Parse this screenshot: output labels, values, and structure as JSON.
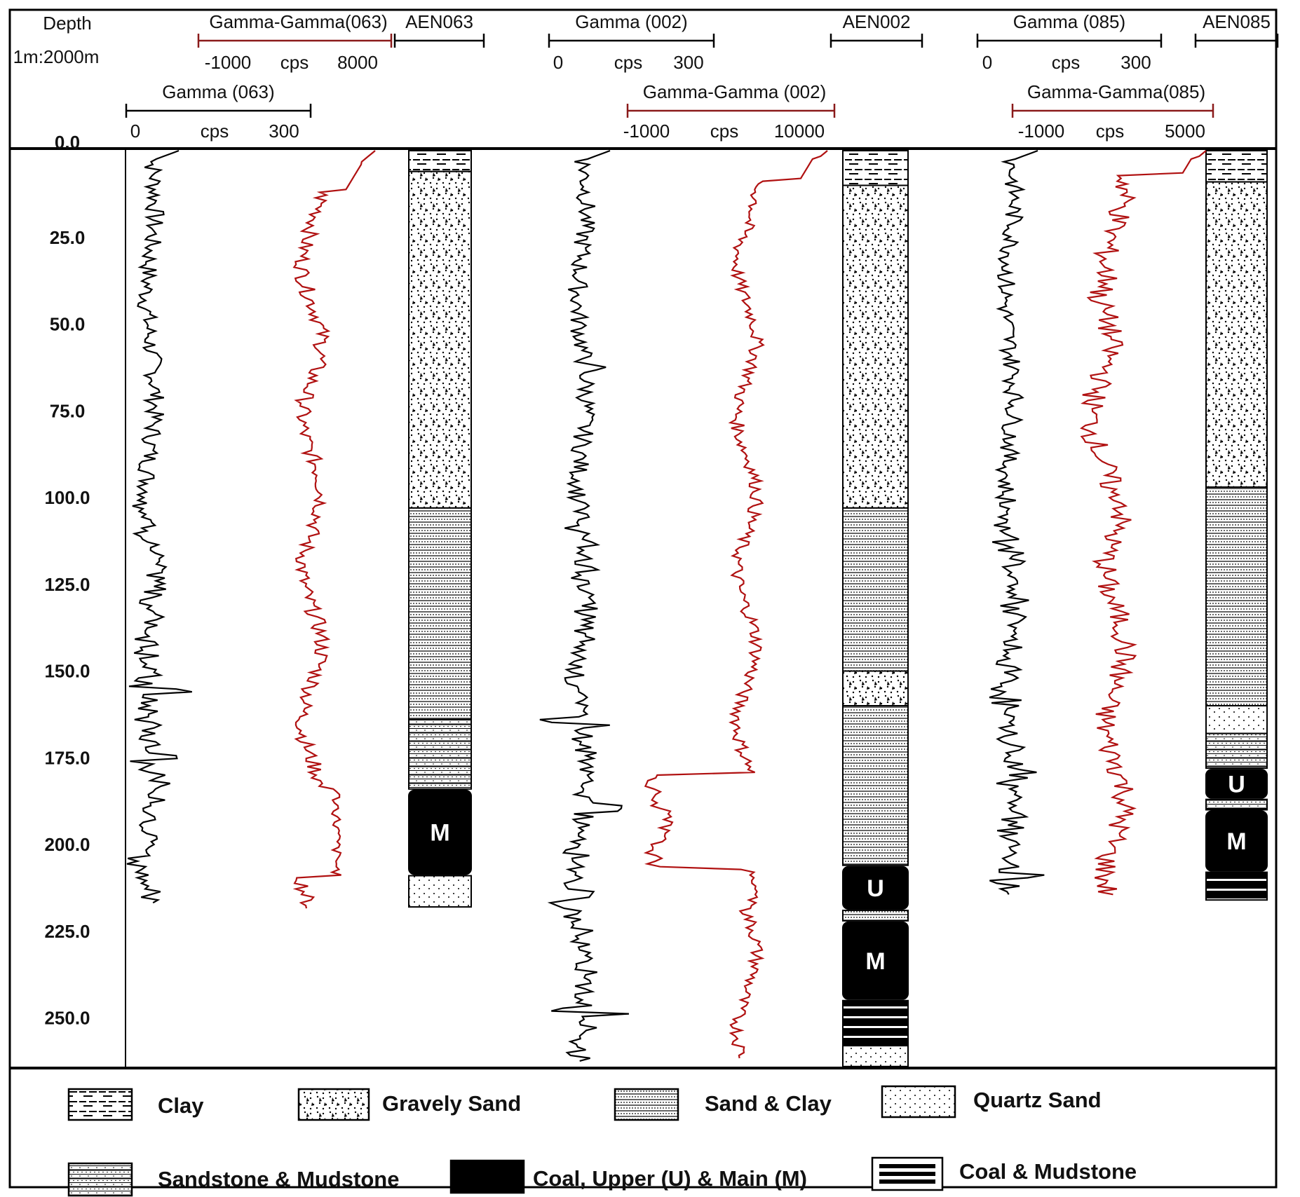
{
  "depth_header": {
    "title": "Depth",
    "scale": "1m:2000m"
  },
  "depth_axis": {
    "ticks": [
      "0.0",
      "25.0",
      "50.0",
      "75.0",
      "100.0",
      "125.0",
      "150.0",
      "175.0",
      "200.0",
      "225.0",
      "250.0"
    ],
    "range": [
      0,
      263
    ]
  },
  "wells": [
    {
      "id": "AEN063",
      "gamma": {
        "name": "Gamma (063)",
        "min": "0",
        "unit": "cps",
        "max": "300"
      },
      "gamma_gamma": {
        "name": "Gamma-Gamma(063)",
        "min": "-1000",
        "unit": "cps",
        "max": "8000"
      },
      "column": [
        {
          "lith": "Clay",
          "from": 0,
          "to": 6
        },
        {
          "lith": "Gravely Sand",
          "from": 6,
          "to": 103
        },
        {
          "lith": "Sand & Clay",
          "from": 103,
          "to": 164
        },
        {
          "lith": "Sandstone & Mudstone",
          "from": 164,
          "to": 184
        },
        {
          "lith": "Coal",
          "from": 184,
          "to": 209,
          "label": "M"
        },
        {
          "lith": "Quartz Sand",
          "from": 209,
          "to": 218
        }
      ],
      "gamma_end": 217,
      "gg_end": 219
    },
    {
      "id": "AEN002",
      "gamma": {
        "name": "Gamma (002)",
        "min": "0",
        "unit": "cps",
        "max": "300"
      },
      "gamma_gamma": {
        "name": "Gamma-Gamma (002)",
        "min": "-1000",
        "unit": "cps",
        "max": "10000"
      },
      "column": [
        {
          "lith": "Clay",
          "from": 0,
          "to": 10
        },
        {
          "lith": "Gravely Sand",
          "from": 10,
          "to": 103
        },
        {
          "lith": "Sand & Clay",
          "from": 103,
          "to": 150
        },
        {
          "lith": "Gravely Sand",
          "from": 150,
          "to": 160
        },
        {
          "lith": "Sand & Clay",
          "from": 160,
          "to": 206
        },
        {
          "lith": "Coal",
          "from": 206,
          "to": 219,
          "label": "U"
        },
        {
          "lith": "Sand & Clay",
          "from": 219,
          "to": 222
        },
        {
          "lith": "Coal",
          "from": 222,
          "to": 245,
          "label": "M"
        },
        {
          "lith": "Coal & Mudstone",
          "from": 245,
          "to": 258
        },
        {
          "lith": "Quartz Sand",
          "from": 258,
          "to": 264
        }
      ],
      "gamma_end": 263,
      "gg_end": 262
    },
    {
      "id": "AEN085",
      "gamma": {
        "name": "Gamma (085)",
        "min": "0",
        "unit": "cps",
        "max": "300"
      },
      "gamma_gamma": {
        "name": "Gamma-Gamma(085)",
        "min": "-1000",
        "unit": "cps",
        "max": "5000"
      },
      "column": [
        {
          "lith": "Clay",
          "from": 0,
          "to": 9
        },
        {
          "lith": "Gravely Sand",
          "from": 9,
          "to": 97
        },
        {
          "lith": "Sand & Clay",
          "from": 97,
          "to": 160
        },
        {
          "lith": "Quartz Sand",
          "from": 160,
          "to": 168
        },
        {
          "lith": "Sandstone & Mudstone",
          "from": 168,
          "to": 178
        },
        {
          "lith": "Coal",
          "from": 178,
          "to": 187,
          "label": "U"
        },
        {
          "lith": "Sandstone & Mudstone",
          "from": 187,
          "to": 190
        },
        {
          "lith": "Coal",
          "from": 190,
          "to": 208,
          "label": "M"
        },
        {
          "lith": "Coal & Mudstone",
          "from": 208,
          "to": 216
        }
      ],
      "gamma_end": 215,
      "gg_end": 215
    }
  ],
  "legend": [
    {
      "key": "clay",
      "label": "Clay"
    },
    {
      "key": "gravely",
      "label": "Gravely Sand"
    },
    {
      "key": "sandclay",
      "label": "Sand & Clay"
    },
    {
      "key": "quartz",
      "label": "Quartz Sand"
    },
    {
      "key": "sandstone",
      "label": "Sandstone & Mudstone"
    },
    {
      "key": "coal",
      "label": "Coal, Upper (U) & Main (M)"
    },
    {
      "key": "coalmud",
      "label": "Coal & Mudstone"
    }
  ],
  "colors": {
    "gamma_curve": "#000000",
    "gamma_gamma_curve": "#b01010",
    "coal": "#000000",
    "frame": "#000000"
  }
}
